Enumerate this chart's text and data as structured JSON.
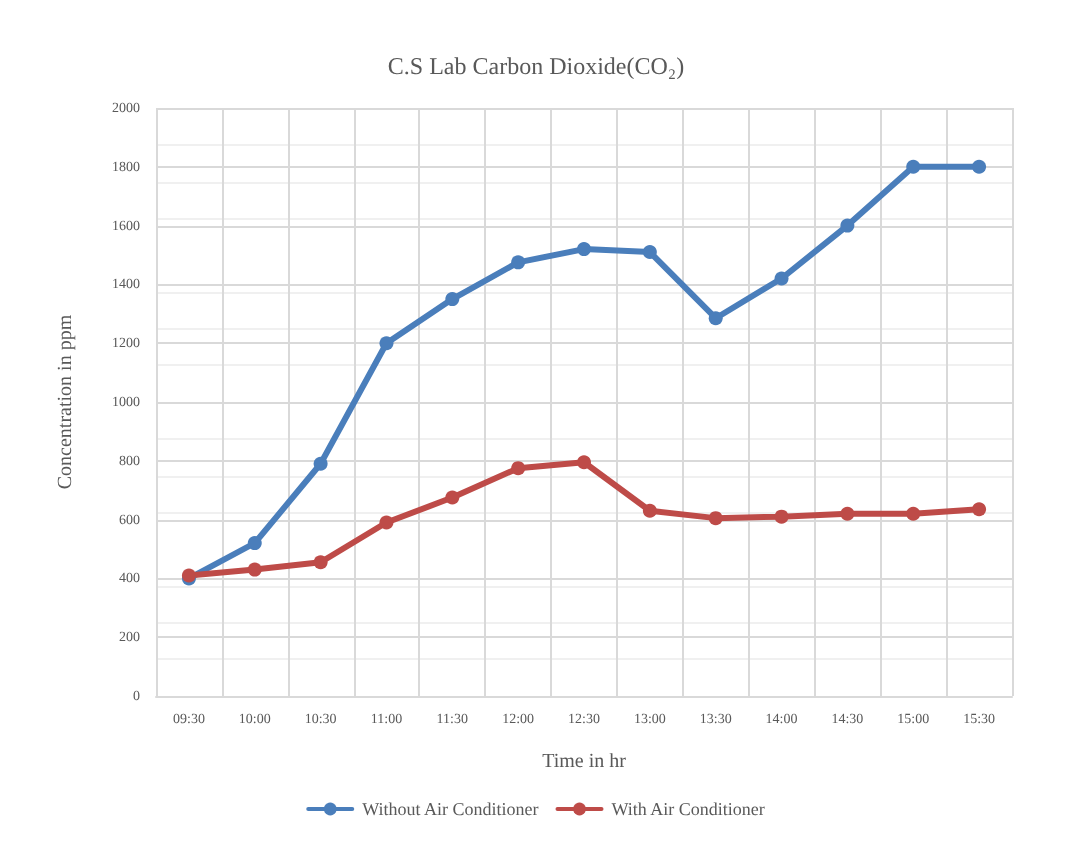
{
  "chart_data": {
    "type": "line",
    "title": "C.S Lab Carbon Dioxide(CO₂)",
    "xlabel": "Time in hr",
    "ylabel": "Concentration in ppm",
    "categories": [
      "09:30",
      "10:00",
      "10:30",
      "11:00",
      "11:30",
      "12:00",
      "12:30",
      "13:00",
      "13:30",
      "14:00",
      "14:30",
      "15:00",
      "15:30"
    ],
    "series": [
      {
        "name": "Without Air Conditioner",
        "color": "#4a7ebb",
        "values": [
          400,
          520,
          790,
          1200,
          1350,
          1475,
          1520,
          1510,
          1285,
          1420,
          1600,
          1800,
          1800
        ]
      },
      {
        "name": "With Air Conditioner",
        "color": "#be4b48",
        "values": [
          410,
          430,
          455,
          590,
          675,
          775,
          795,
          630,
          605,
          610,
          620,
          620,
          635
        ]
      }
    ],
    "ylim": [
      0,
      2000
    ],
    "yticks": [
      0,
      200,
      400,
      600,
      800,
      1000,
      1200,
      1400,
      1600,
      1800,
      2000
    ],
    "grid": true,
    "legend": "bottom",
    "marker": "circle",
    "line_style": "solid"
  }
}
